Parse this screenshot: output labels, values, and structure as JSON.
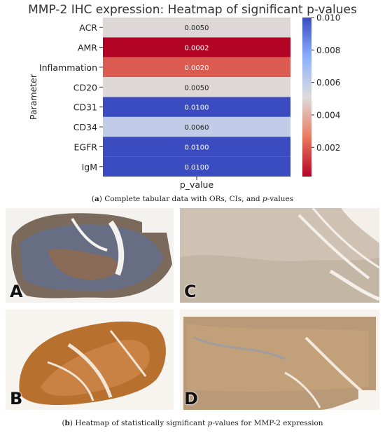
{
  "chart_data": {
    "type": "heatmap",
    "title": "MMP-2 IHC expression: Heatmap of significant p-values",
    "ylabel": "Parameter",
    "xlabel": "p_value",
    "categories": [
      "ACR",
      "AMR",
      "Inflammation",
      "CD20",
      "CD31",
      "CD34",
      "EGFR",
      "IgM"
    ],
    "values": [
      0.005,
      0.0002,
      0.002,
      0.005,
      0.01,
      0.006,
      0.01,
      0.01
    ],
    "value_labels": [
      "0.0050",
      "0.0002",
      "0.0020",
      "0.0050",
      "0.0100",
      "0.0060",
      "0.0100",
      "0.0100"
    ],
    "colorbar": {
      "range": [
        0.0002,
        0.01
      ],
      "ticks": [
        "0.002",
        "0.004",
        "0.006",
        "0.008",
        "0.010"
      ],
      "tick_values": [
        0.002,
        0.004,
        0.006,
        0.008,
        0.01
      ],
      "colormap": "coolwarm_r"
    }
  },
  "captions": {
    "a": {
      "letter": "a",
      "pre": ") Complete tabular data with ORs, CIs, and ",
      "em": "p",
      "post": "-values"
    },
    "b": {
      "letter": "b",
      "pre": ") Heatmap of statistically significant ",
      "em": "p",
      "post": "-values for MMP-2 expression"
    }
  },
  "panels": [
    {
      "letter": "A",
      "stain": "mixed brown-blue IHC tissue section"
    },
    {
      "letter": "B",
      "stain": "strong brown IHC tissue section"
    },
    {
      "letter": "C",
      "stain": "light IHC tissue section"
    },
    {
      "letter": "D",
      "stain": "moderate brown IHC tissue section"
    }
  ],
  "colors": {
    "low": "#b40426",
    "mid": "#dddcdc",
    "high": "#3b4cc0",
    "stain_brown": "#b56d2e",
    "stain_blue": "#5a6f9a"
  }
}
